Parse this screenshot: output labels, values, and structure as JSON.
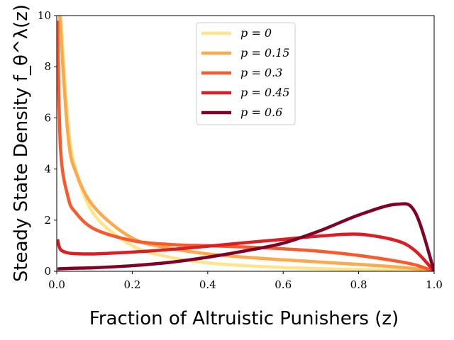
{
  "chart_data": {
    "type": "line",
    "title": "",
    "xlabel": "Fraction of Altruistic Punishers (z)",
    "ylabel": "Steady State Density f_θ^λ(z)",
    "xlim": [
      0,
      1
    ],
    "ylim": [
      0,
      10
    ],
    "x_ticks": [
      "0.0",
      "0.2",
      "0.4",
      "0.6",
      "0.8",
      "1.0"
    ],
    "y_ticks": [
      "0",
      "2",
      "4",
      "6",
      "8",
      "10"
    ],
    "grid": false,
    "legend_position": "top-center",
    "x": [
      0.002,
      0.01,
      0.03,
      0.05,
      0.1,
      0.2,
      0.3,
      0.4,
      0.5,
      0.6,
      0.7,
      0.8,
      0.9,
      0.95,
      1.0
    ],
    "series": [
      {
        "name": "p = 0",
        "color": "#ffe58a",
        "values": [
          13.0,
          10.2,
          5.8,
          4.0,
          2.2,
          1.0,
          0.55,
          0.33,
          0.22,
          0.15,
          0.1,
          0.07,
          0.04,
          0.02,
          0.0
        ]
      },
      {
        "name": "p = 0.15",
        "color": "#fda84a",
        "values": [
          12.0,
          9.5,
          5.3,
          3.9,
          2.5,
          1.3,
          0.9,
          0.68,
          0.55,
          0.45,
          0.36,
          0.27,
          0.17,
          0.1,
          0.0
        ]
      },
      {
        "name": "p = 0.3",
        "color": "#f85a2c",
        "values": [
          9.8,
          4.8,
          2.9,
          2.3,
          1.65,
          1.2,
          1.05,
          1.0,
          0.95,
          0.88,
          0.78,
          0.62,
          0.4,
          0.25,
          0.0
        ]
      },
      {
        "name": "p = 0.45",
        "color": "#dc1d24",
        "values": [
          1.25,
          0.85,
          0.72,
          0.69,
          0.68,
          0.75,
          0.85,
          0.98,
          1.12,
          1.25,
          1.38,
          1.45,
          1.2,
          0.8,
          0.0
        ]
      },
      {
        "name": "p = 0.6",
        "color": "#800026",
        "values": [
          0.09,
          0.1,
          0.11,
          0.12,
          0.14,
          0.22,
          0.35,
          0.55,
          0.8,
          1.1,
          1.6,
          2.2,
          2.62,
          2.3,
          0.0
        ]
      }
    ]
  }
}
